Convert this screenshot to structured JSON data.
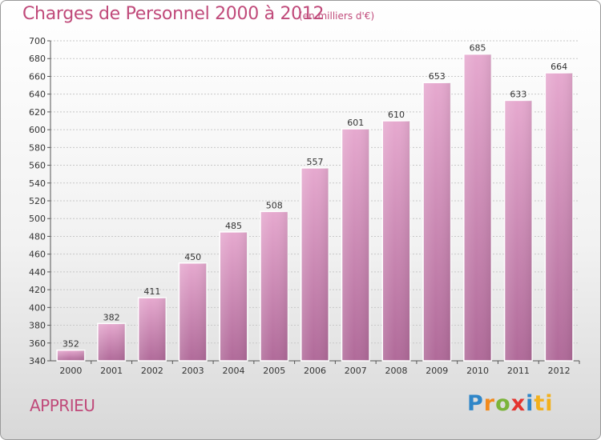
{
  "header": {
    "title": "Charges de Personnel 2000 à 2012",
    "subtitle": "(en milliers d'€)"
  },
  "footer": {
    "place": "APPRIEU",
    "logo": [
      "P",
      "r",
      "o",
      "x",
      "i",
      "ti"
    ]
  },
  "colors": {
    "bar_top": "#e6a9cf",
    "bar_bottom": "#b06a99",
    "text_accent": "#c04a7a"
  },
  "chart_data": {
    "type": "bar",
    "title": "Charges de Personnel 2000 à 2012",
    "subtitle": "(en milliers d'€)",
    "categories": [
      "2000",
      "2001",
      "2002",
      "2003",
      "2004",
      "2005",
      "2006",
      "2007",
      "2008",
      "2009",
      "2010",
      "2011",
      "2012"
    ],
    "values": [
      352,
      382,
      411,
      450,
      485,
      508,
      557,
      601,
      610,
      653,
      685,
      633,
      664
    ],
    "ylim": [
      340,
      700
    ],
    "yticks": [
      340,
      360,
      380,
      400,
      420,
      440,
      460,
      480,
      500,
      520,
      540,
      560,
      580,
      600,
      620,
      640,
      660,
      680,
      700
    ],
    "grid": true,
    "legend": "none"
  }
}
